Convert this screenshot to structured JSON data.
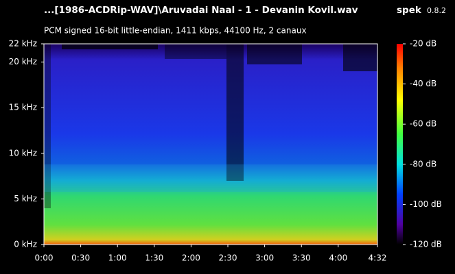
{
  "chart_data": {
    "type": "spectrogram",
    "title": "...[1986-ACDRip-WAV]\\Aruvadai Naal - 1 - Devanin Kovil.wav",
    "app_name": "spek",
    "app_version": "0.8.2",
    "subtitle": "PCM signed 16-bit little-endian, 1411 kbps, 44100 Hz, 2 canaux",
    "xlim": [
      0,
      272
    ],
    "xticks": [
      {
        "value": 0,
        "label": "0:00"
      },
      {
        "value": 30,
        "label": "0:30"
      },
      {
        "value": 60,
        "label": "1:00"
      },
      {
        "value": 90,
        "label": "1:30"
      },
      {
        "value": 120,
        "label": "2:00"
      },
      {
        "value": 150,
        "label": "2:30"
      },
      {
        "value": 180,
        "label": "3:00"
      },
      {
        "value": 210,
        "label": "3:30"
      },
      {
        "value": 240,
        "label": "4:00"
      },
      {
        "value": 272,
        "label": "4:32"
      }
    ],
    "ylim": [
      0,
      22
    ],
    "yticks": [
      {
        "value": 0,
        "label": "0 kHz"
      },
      {
        "value": 5,
        "label": "5 kHz"
      },
      {
        "value": 10,
        "label": "10 kHz"
      },
      {
        "value": 15,
        "label": "15 kHz"
      },
      {
        "value": 20,
        "label": "20 kHz"
      },
      {
        "value": 22,
        "label": "22 kHz"
      }
    ],
    "colorbar_lim": [
      -120,
      -20
    ],
    "colorbar_ticks": [
      {
        "value": -20,
        "label": "-20 dB"
      },
      {
        "value": -40,
        "label": "-40 dB"
      },
      {
        "value": -60,
        "label": "-60 dB"
      },
      {
        "value": -80,
        "label": "-80 dB"
      },
      {
        "value": -100,
        "label": "-100 dB"
      },
      {
        "value": -120,
        "label": "-120 dB"
      }
    ]
  }
}
